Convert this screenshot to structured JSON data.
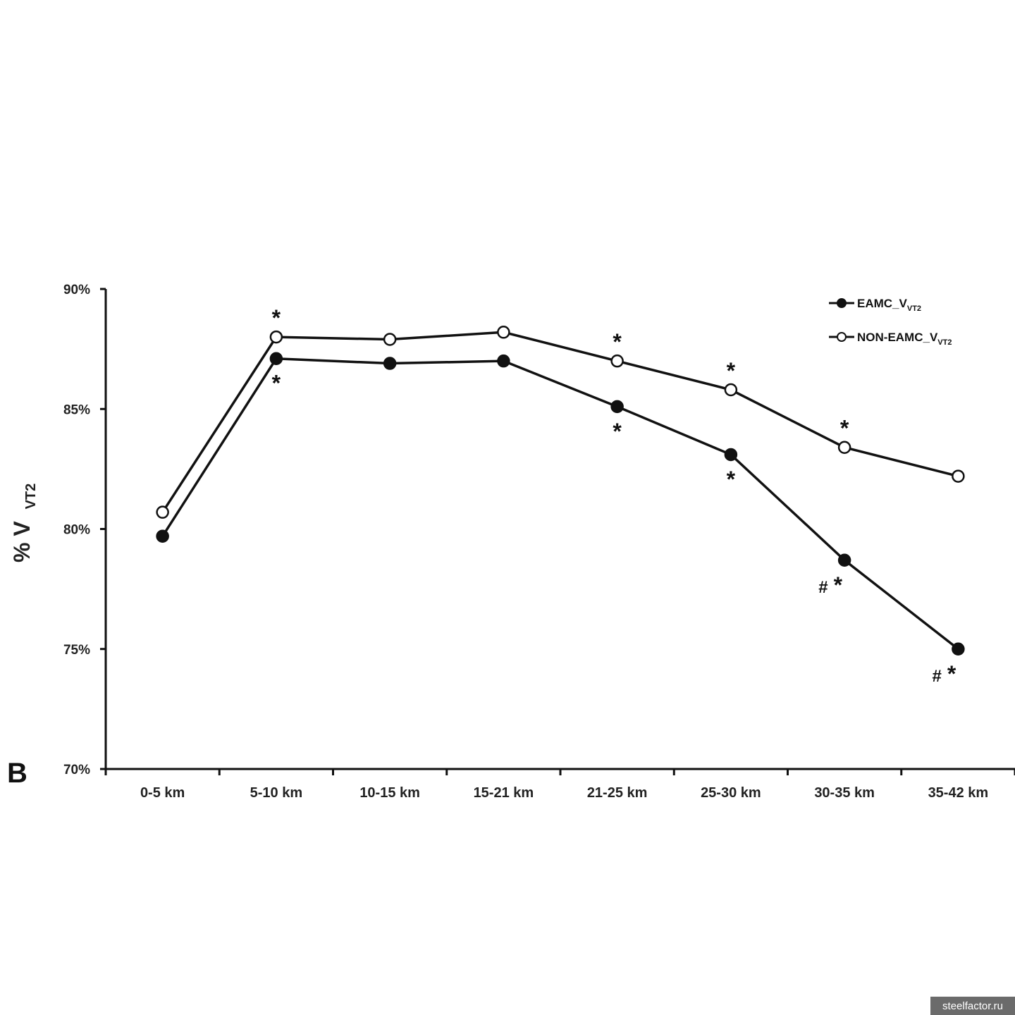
{
  "chart_data": {
    "type": "line",
    "panel_label": "B",
    "ylabel": {
      "main": "% V",
      "sub": "VT2"
    },
    "xlabel": "",
    "ylim": [
      70,
      90
    ],
    "y_ticks": [
      {
        "value": 70,
        "label": "70%"
      },
      {
        "value": 75,
        "label": "75%"
      },
      {
        "value": 80,
        "label": "80%"
      },
      {
        "value": 85,
        "label": "85%"
      },
      {
        "value": 90,
        "label": "90%"
      }
    ],
    "categories": [
      "0-5 km",
      "5-10 km",
      "10-15 km",
      "15-21 km",
      "21-25 km",
      "25-30 km",
      "30-35 km",
      "35-42 km"
    ],
    "series": [
      {
        "name": "EAMC_V",
        "name_sub": "VT2",
        "marker": "filled",
        "values": [
          79.7,
          87.1,
          86.9,
          87.0,
          85.1,
          83.1,
          78.7,
          75.0
        ],
        "annotations": [
          "",
          "*",
          "",
          "",
          "*",
          "*",
          "# *",
          "# *"
        ]
      },
      {
        "name": "NON-EAMC_V",
        "name_sub": "VT2",
        "marker": "open",
        "values": [
          80.7,
          88.0,
          87.9,
          88.2,
          87.0,
          85.8,
          83.4,
          82.2
        ],
        "annotations": [
          "",
          "*",
          "",
          "",
          "*",
          "*",
          "*",
          ""
        ]
      }
    ],
    "legend_position": "top-right",
    "grid": false,
    "colors": {
      "line": "#111111",
      "marker_fill_open": "#ffffff",
      "marker_fill_filled": "#111111"
    }
  },
  "watermark": "steelfactor.ru"
}
